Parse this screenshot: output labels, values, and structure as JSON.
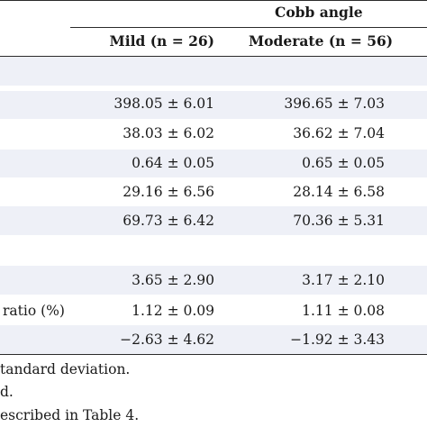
{
  "header": {
    "group_label": "Cobb angle",
    "col1": "Mild (n = 26)",
    "col2": "Moderate (n = 56)"
  },
  "rows": [
    {
      "label": "",
      "mild": "",
      "moderate": ""
    },
    {
      "label": "",
      "mild": "398.05 ± 6.01",
      "moderate": "396.65 ± 7.03"
    },
    {
      "label": "",
      "mild": "38.03 ± 6.02",
      "moderate": "36.62 ± 7.04"
    },
    {
      "label": "",
      "mild": "0.64 ± 0.05",
      "moderate": "0.65 ± 0.05"
    },
    {
      "label": "",
      "mild": "29.16 ± 6.56",
      "moderate": "28.14 ± 6.58"
    },
    {
      "label": "",
      "mild": "69.73 ± 6.42",
      "moderate": "70.36 ± 5.31"
    },
    {
      "label": "",
      "mild": "",
      "moderate": ""
    },
    {
      "label": "",
      "mild": "3.65 ± 2.90",
      "moderate": "3.17 ± 2.10"
    },
    {
      "label": "ratio (%)",
      "mild": "1.12 ± 0.09",
      "moderate": "1.11 ± 0.08"
    },
    {
      "label": "",
      "mild": "−2.63 ± 4.62",
      "moderate": "−1.92 ± 3.43"
    }
  ],
  "footnotes": [
    "tandard deviation.",
    "d.",
    "escribed in Table 4."
  ],
  "colors": {
    "band": "#eef0f7",
    "rule": "#2b2b2b"
  }
}
